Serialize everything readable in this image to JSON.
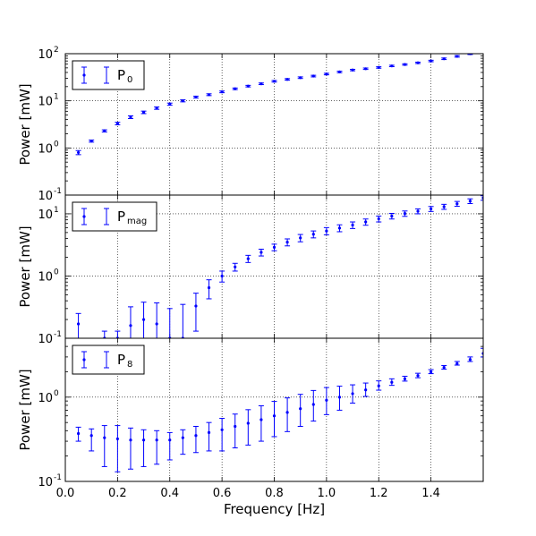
{
  "chart_data": [
    {
      "type": "scatter",
      "scale": "log",
      "ylabel": "Power [mW]",
      "xlabel": "",
      "xlim": [
        0.0,
        1.6
      ],
      "ylim": [
        0.1,
        100
      ],
      "yticks": [
        0.1,
        1,
        10,
        100
      ],
      "ytick_labels": [
        "10^-1",
        "10^0",
        "10^1",
        "10^2"
      ],
      "ytick_labels_shown": [
        "10",
        "10",
        "10",
        "10"
      ],
      "ytick_exponents": [
        "-1",
        "0",
        "1",
        "2"
      ],
      "grid": true,
      "legend": {
        "position": "top-left",
        "label": "P",
        "sub": "0"
      },
      "series": [
        {
          "name": "P0",
          "color": "#0000ff",
          "x": [
            0.05,
            0.1,
            0.15,
            0.2,
            0.25,
            0.3,
            0.35,
            0.4,
            0.45,
            0.5,
            0.55,
            0.6,
            0.65,
            0.7,
            0.75,
            0.8,
            0.85,
            0.9,
            0.95,
            1.0,
            1.05,
            1.1,
            1.15,
            1.2,
            1.25,
            1.3,
            1.35,
            1.4,
            1.45,
            1.5,
            1.55,
            1.6
          ],
          "y": [
            0.8,
            1.4,
            2.3,
            3.3,
            4.5,
            5.7,
            7.0,
            8.5,
            10,
            12,
            13.5,
            15.5,
            18,
            20.5,
            23,
            26,
            28.5,
            31,
            33.5,
            37,
            41,
            45,
            48,
            51,
            55,
            59,
            64,
            70,
            78,
            88,
            100,
            110
          ],
          "err": [
            0.08,
            0.07,
            0.12,
            0.2,
            0.3,
            0.35,
            0.4,
            0.45,
            0.5,
            0.55,
            0.6,
            0.65,
            0.7,
            0.8,
            0.9,
            1,
            1.1,
            1.2,
            1.3,
            1.4,
            1.5,
            1.6,
            1.7,
            1.8,
            1.9,
            2,
            2.2,
            2.5,
            3,
            3.5,
            4,
            5
          ]
        }
      ]
    },
    {
      "type": "scatter",
      "scale": "log",
      "ylabel": "Power [mW]",
      "xlabel": "",
      "xlim": [
        0.0,
        1.6
      ],
      "ylim": [
        0.1,
        20
      ],
      "yticks": [
        0.1,
        1,
        10
      ],
      "ytick_labels_shown": [
        "10",
        "10",
        "10"
      ],
      "ytick_exponents": [
        "-1",
        "0",
        "1"
      ],
      "grid": true,
      "legend": {
        "position": "top-left",
        "label": "P",
        "sub": "mag"
      },
      "series": [
        {
          "name": "Pmag",
          "color": "#0000ff",
          "x": [
            0.05,
            0.15,
            0.2,
            0.25,
            0.3,
            0.35,
            0.4,
            0.45,
            0.5,
            0.55,
            0.6,
            0.65,
            0.7,
            0.75,
            0.8,
            0.85,
            0.9,
            0.95,
            1.0,
            1.05,
            1.1,
            1.15,
            1.2,
            1.25,
            1.3,
            1.35,
            1.4,
            1.45,
            1.5,
            1.55,
            1.6
          ],
          "y": [
            0.17,
            0.1,
            0.1,
            0.16,
            0.2,
            0.17,
            0.1,
            0.1,
            0.33,
            0.65,
            1.0,
            1.4,
            1.9,
            2.4,
            2.9,
            3.5,
            4.1,
            4.7,
            5.3,
            5.9,
            6.6,
            7.4,
            8.3,
            9.2,
            10.1,
            11,
            12,
            13,
            14.5,
            16,
            18
          ],
          "err_low": [
            0.08,
            0.02,
            0.03,
            0.09,
            0.12,
            0.1,
            0.03,
            0.03,
            0.2,
            0.22,
            0.2,
            0.2,
            0.25,
            0.3,
            0.35,
            0.45,
            0.55,
            0.6,
            0.7,
            0.75,
            0.8,
            0.85,
            0.9,
            0.95,
            1,
            1,
            1.1,
            1.2,
            1.3,
            1.4,
            1.5
          ],
          "err_high": [
            0.08,
            0.03,
            0.03,
            0.16,
            0.18,
            0.2,
            0.2,
            0.25,
            0.2,
            0.22,
            0.2,
            0.2,
            0.25,
            0.3,
            0.35,
            0.45,
            0.55,
            0.6,
            0.7,
            0.75,
            0.8,
            0.85,
            0.9,
            0.95,
            1,
            1,
            1.1,
            1.2,
            1.3,
            1.4,
            1.5
          ]
        }
      ]
    },
    {
      "type": "scatter",
      "scale": "log",
      "ylabel": "Power [mW]",
      "xlabel": "Frequency [Hz]",
      "xlim": [
        0.0,
        1.6
      ],
      "ylim": [
        0.1,
        5
      ],
      "yticks": [
        0.1,
        1
      ],
      "ytick_labels_shown": [
        "10",
        "10"
      ],
      "ytick_exponents": [
        "-1",
        "0"
      ],
      "xticks": [
        0.0,
        0.2,
        0.4,
        0.6,
        0.8,
        1.0,
        1.2,
        1.4
      ],
      "xtick_labels": [
        "0.0",
        "0.2",
        "0.4",
        "0.6",
        "0.8",
        "1.0",
        "1.2",
        "1.4"
      ],
      "grid": true,
      "legend": {
        "position": "top-left",
        "label": "P",
        "sub": "8"
      },
      "series": [
        {
          "name": "P8",
          "color": "#0000ff",
          "x": [
            0.05,
            0.1,
            0.15,
            0.2,
            0.25,
            0.3,
            0.35,
            0.4,
            0.45,
            0.5,
            0.55,
            0.6,
            0.65,
            0.7,
            0.75,
            0.8,
            0.85,
            0.9,
            0.95,
            1.0,
            1.05,
            1.1,
            1.15,
            1.2,
            1.25,
            1.3,
            1.35,
            1.4,
            1.45,
            1.5,
            1.55,
            1.6
          ],
          "y": [
            0.37,
            0.35,
            0.33,
            0.32,
            0.31,
            0.31,
            0.31,
            0.31,
            0.33,
            0.35,
            0.38,
            0.41,
            0.45,
            0.49,
            0.54,
            0.6,
            0.66,
            0.73,
            0.82,
            0.92,
            1.0,
            1.1,
            1.22,
            1.36,
            1.5,
            1.65,
            1.8,
            2.0,
            2.25,
            2.5,
            2.8,
            3.3
          ],
          "err_low": [
            0.07,
            0.12,
            0.18,
            0.19,
            0.17,
            0.16,
            0.15,
            0.13,
            0.12,
            0.13,
            0.15,
            0.18,
            0.2,
            0.22,
            0.24,
            0.26,
            0.27,
            0.28,
            0.3,
            0.3,
            0.3,
            0.25,
            0.2,
            0.15,
            0.12,
            0.1,
            0.1,
            0.1,
            0.1,
            0.1,
            0.15,
            0.3
          ],
          "err_high": [
            0.07,
            0.07,
            0.13,
            0.14,
            0.12,
            0.1,
            0.09,
            0.07,
            0.08,
            0.1,
            0.12,
            0.15,
            0.18,
            0.22,
            0.25,
            0.29,
            0.32,
            0.35,
            0.38,
            0.38,
            0.35,
            0.3,
            0.25,
            0.2,
            0.15,
            0.12,
            0.12,
            0.12,
            0.12,
            0.15,
            0.2,
            0.5
          ]
        }
      ]
    }
  ]
}
